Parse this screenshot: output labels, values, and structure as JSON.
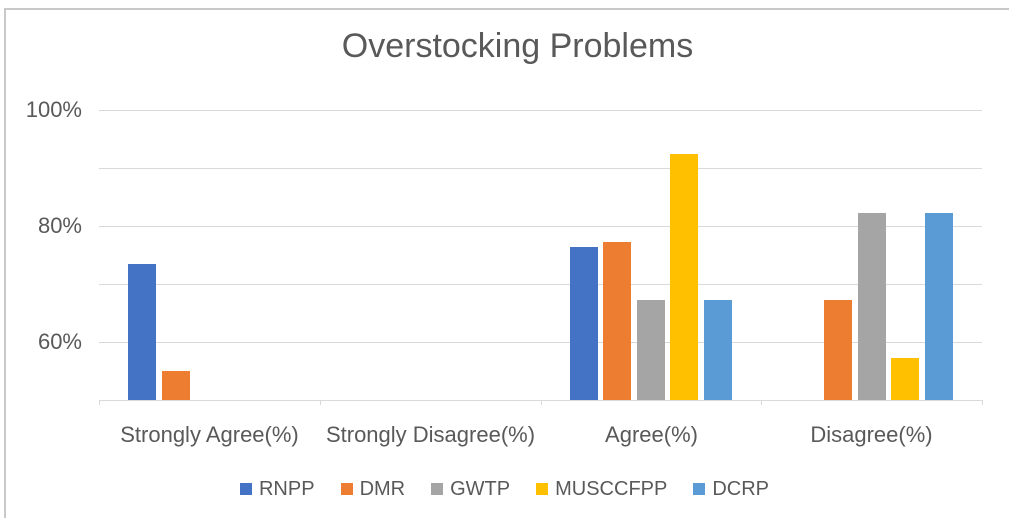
{
  "chart_data": {
    "type": "bar",
    "title": "Overstocking Problems",
    "categories": [
      "Strongly Agree(%)",
      "Strongly Disagree(%)",
      "Agree(%)",
      "Disagree(%)"
    ],
    "series": [
      {
        "name": "RNPP",
        "color": "#4472C4",
        "values": [
          73.5,
          0,
          76.3,
          0
        ]
      },
      {
        "name": "DMR",
        "color": "#ED7D31",
        "values": [
          55.0,
          0,
          77.3,
          67.3
        ]
      },
      {
        "name": "GWTP",
        "color": "#A5A5A5",
        "values": [
          0,
          0,
          67.3,
          82.2
        ]
      },
      {
        "name": "MUSCCFPP",
        "color": "#FFC000",
        "values": [
          0,
          0,
          92.4,
          57.3
        ]
      },
      {
        "name": "DCRP",
        "color": "#5B9BD5",
        "values": [
          0,
          0,
          67.3,
          82.2
        ]
      }
    ],
    "y_axis": {
      "min": 50,
      "max": 100,
      "gridline_step": 10,
      "tick_labels": [
        "100%",
        "80%",
        "60%"
      ],
      "tick_values": [
        100,
        80,
        60
      ]
    },
    "grid": true,
    "legend_position": "bottom",
    "colors": {
      "text": "#595959",
      "gridline": "#D9D9D9",
      "frame_border": "#C9C9C9",
      "background": "#FFFFFF"
    }
  }
}
